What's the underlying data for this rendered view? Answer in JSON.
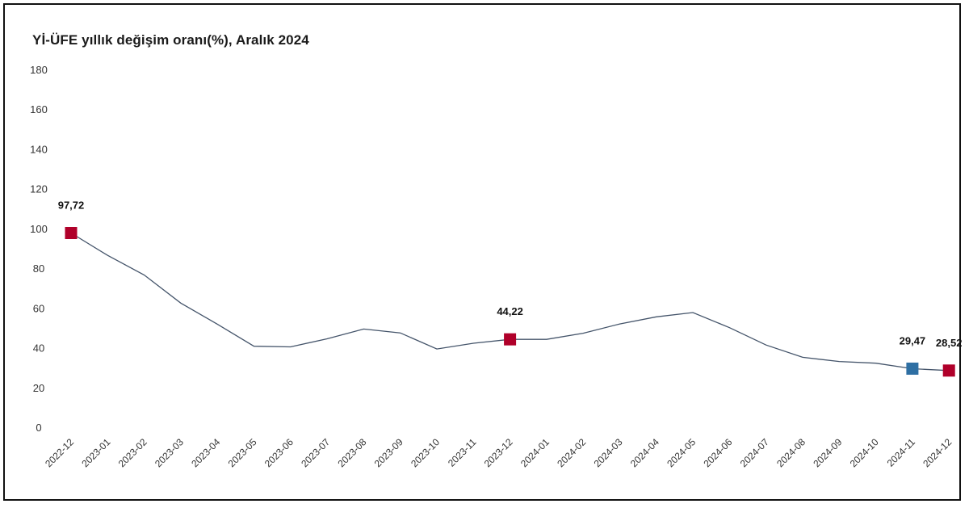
{
  "chart_data": {
    "type": "line",
    "title": "Yİ-ÜFE yıllık değişim oranı(%), Aralık 2024",
    "xlabel": "",
    "ylabel": "",
    "ylim": [
      0,
      180
    ],
    "yticks": [
      "0",
      "20",
      "40",
      "60",
      "80",
      "100",
      "120",
      "140",
      "160",
      "180"
    ],
    "grid": false,
    "categories": [
      "2022-12",
      "2023-01",
      "2023-02",
      "2023-03",
      "2023-04",
      "2023-05",
      "2023-06",
      "2023-07",
      "2023-08",
      "2023-09",
      "2023-10",
      "2023-11",
      "2023-12",
      "2024-01",
      "2024-02",
      "2024-03",
      "2024-04",
      "2024-05",
      "2024-06",
      "2024-07",
      "2024-08",
      "2024-09",
      "2024-10",
      "2024-11",
      "2024-12"
    ],
    "series": [
      {
        "values": [
          97.72,
          86.46,
          76.61,
          62.45,
          51.83,
          40.76,
          40.42,
          44.5,
          49.41,
          47.44,
          39.39,
          42.25,
          44.22,
          44.2,
          47.29,
          51.97,
          55.54,
          57.68,
          50.09,
          41.37,
          35.17,
          33.09,
          32.24,
          29.47,
          28.52
        ],
        "color": "#44546a"
      }
    ],
    "markers": [
      {
        "category": "2022-12",
        "value": 97.72,
        "label": "97,72",
        "color": "#b0002a"
      },
      {
        "category": "2023-12",
        "value": 44.22,
        "label": "44,22",
        "color": "#b0002a"
      },
      {
        "category": "2024-11",
        "value": 29.47,
        "label": "29,47",
        "color": "#2e6fa3"
      },
      {
        "category": "2024-12",
        "value": 28.52,
        "label": "28,52",
        "color": "#b0002a"
      }
    ]
  }
}
